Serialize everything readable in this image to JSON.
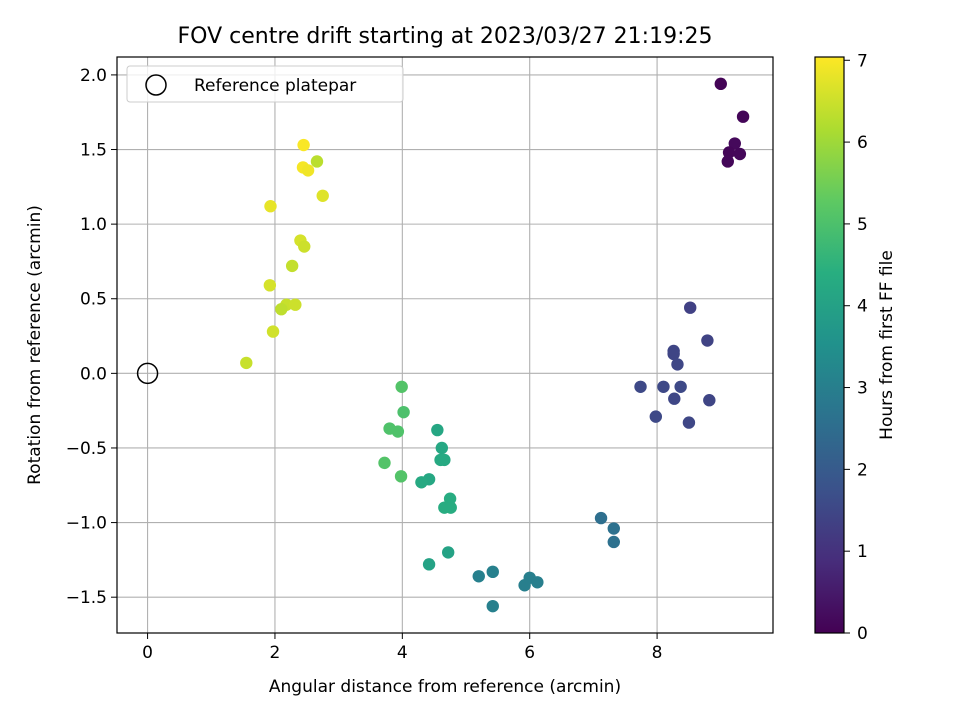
{
  "chart_data": {
    "type": "scatter",
    "title": "FOV centre drift starting at 2023/03/27 21:19:25",
    "xlabel": "Angular distance from reference (arcmin)",
    "ylabel": "Rotation from reference (arcmin)",
    "xlim": [
      -0.48,
      9.82
    ],
    "ylim": [
      -1.74,
      2.12
    ],
    "xticks": [
      0,
      2,
      4,
      6,
      8
    ],
    "yticks": [
      -1.5,
      -1.0,
      -0.5,
      0.0,
      0.5,
      1.0,
      1.5,
      2.0
    ],
    "xtick_labels": [
      "0",
      "2",
      "4",
      "6",
      "8"
    ],
    "ytick_labels": [
      "−1.5",
      "−1.0",
      "−0.5",
      "0.0",
      "0.5",
      "1.0",
      "1.5",
      "2.0"
    ],
    "grid": true,
    "legend": {
      "placement": "top-left",
      "entries": [
        "Reference platepar"
      ]
    },
    "reference_point": {
      "x": 0.0,
      "y": 0.0,
      "label": "Reference platepar"
    },
    "colorbar": {
      "label": "Hours from first FF file",
      "min": 0,
      "max": 7.04,
      "ticks": [
        0,
        1,
        2,
        3,
        4,
        5,
        6,
        7
      ],
      "colormap": "viridis"
    },
    "points": [
      {
        "x": 9.0,
        "y": 1.94,
        "c": 0.05
      },
      {
        "x": 9.35,
        "y": 1.72,
        "c": 0.1
      },
      {
        "x": 9.22,
        "y": 1.54,
        "c": 0.15
      },
      {
        "x": 9.13,
        "y": 1.48,
        "c": 0.1
      },
      {
        "x": 9.3,
        "y": 1.47,
        "c": 0.12
      },
      {
        "x": 9.11,
        "y": 1.42,
        "c": 0.12
      },
      {
        "x": 8.52,
        "y": 0.44,
        "c": 1.35
      },
      {
        "x": 8.79,
        "y": 0.22,
        "c": 1.4
      },
      {
        "x": 8.26,
        "y": 0.15,
        "c": 1.45
      },
      {
        "x": 8.26,
        "y": 0.13,
        "c": 1.45
      },
      {
        "x": 8.32,
        "y": 0.06,
        "c": 1.5
      },
      {
        "x": 7.74,
        "y": -0.09,
        "c": 1.55
      },
      {
        "x": 8.1,
        "y": -0.09,
        "c": 1.55
      },
      {
        "x": 8.37,
        "y": -0.09,
        "c": 1.55
      },
      {
        "x": 8.27,
        "y": -0.17,
        "c": 1.5
      },
      {
        "x": 8.82,
        "y": -0.18,
        "c": 1.45
      },
      {
        "x": 7.98,
        "y": -0.29,
        "c": 1.55
      },
      {
        "x": 8.5,
        "y": -0.33,
        "c": 1.5
      },
      {
        "x": 7.12,
        "y": -0.97,
        "c": 2.55
      },
      {
        "x": 7.32,
        "y": -1.04,
        "c": 2.6
      },
      {
        "x": 7.32,
        "y": -1.13,
        "c": 2.6
      },
      {
        "x": 5.2,
        "y": -1.36,
        "c": 3.05
      },
      {
        "x": 5.42,
        "y": -1.33,
        "c": 3.05
      },
      {
        "x": 6.0,
        "y": -1.37,
        "c": 3.0
      },
      {
        "x": 6.12,
        "y": -1.4,
        "c": 3.0
      },
      {
        "x": 5.92,
        "y": -1.42,
        "c": 3.0
      },
      {
        "x": 5.42,
        "y": -1.56,
        "c": 3.05
      },
      {
        "x": 4.42,
        "y": -1.28,
        "c": 4.05
      },
      {
        "x": 4.72,
        "y": -1.2,
        "c": 4.05
      },
      {
        "x": 4.55,
        "y": -0.38,
        "c": 4.15
      },
      {
        "x": 4.62,
        "y": -0.5,
        "c": 4.2
      },
      {
        "x": 4.6,
        "y": -0.58,
        "c": 4.25
      },
      {
        "x": 4.66,
        "y": -0.58,
        "c": 4.25
      },
      {
        "x": 4.42,
        "y": -0.71,
        "c": 4.2
      },
      {
        "x": 4.3,
        "y": -0.73,
        "c": 4.25
      },
      {
        "x": 4.75,
        "y": -0.84,
        "c": 4.35
      },
      {
        "x": 4.66,
        "y": -0.9,
        "c": 4.35
      },
      {
        "x": 4.76,
        "y": -0.9,
        "c": 4.35
      },
      {
        "x": 3.99,
        "y": -0.09,
        "c": 5.1
      },
      {
        "x": 4.02,
        "y": -0.26,
        "c": 5.0
      },
      {
        "x": 3.8,
        "y": -0.37,
        "c": 5.05
      },
      {
        "x": 3.93,
        "y": -0.39,
        "c": 5.05
      },
      {
        "x": 3.72,
        "y": -0.6,
        "c": 5.1
      },
      {
        "x": 3.98,
        "y": -0.69,
        "c": 5.1
      },
      {
        "x": 2.45,
        "y": 1.53,
        "c": 7.0
      },
      {
        "x": 2.66,
        "y": 1.42,
        "c": 6.3
      },
      {
        "x": 2.44,
        "y": 1.38,
        "c": 6.95
      },
      {
        "x": 2.52,
        "y": 1.36,
        "c": 6.9
      },
      {
        "x": 2.75,
        "y": 1.19,
        "c": 6.7
      },
      {
        "x": 1.93,
        "y": 1.12,
        "c": 6.8
      },
      {
        "x": 2.4,
        "y": 0.89,
        "c": 6.6
      },
      {
        "x": 2.46,
        "y": 0.85,
        "c": 6.5
      },
      {
        "x": 2.27,
        "y": 0.72,
        "c": 6.4
      },
      {
        "x": 1.92,
        "y": 0.59,
        "c": 6.6
      },
      {
        "x": 2.18,
        "y": 0.46,
        "c": 6.45
      },
      {
        "x": 2.32,
        "y": 0.46,
        "c": 6.5
      },
      {
        "x": 2.1,
        "y": 0.43,
        "c": 6.35
      },
      {
        "x": 1.97,
        "y": 0.28,
        "c": 6.55
      },
      {
        "x": 1.55,
        "y": 0.07,
        "c": 6.45
      }
    ]
  }
}
